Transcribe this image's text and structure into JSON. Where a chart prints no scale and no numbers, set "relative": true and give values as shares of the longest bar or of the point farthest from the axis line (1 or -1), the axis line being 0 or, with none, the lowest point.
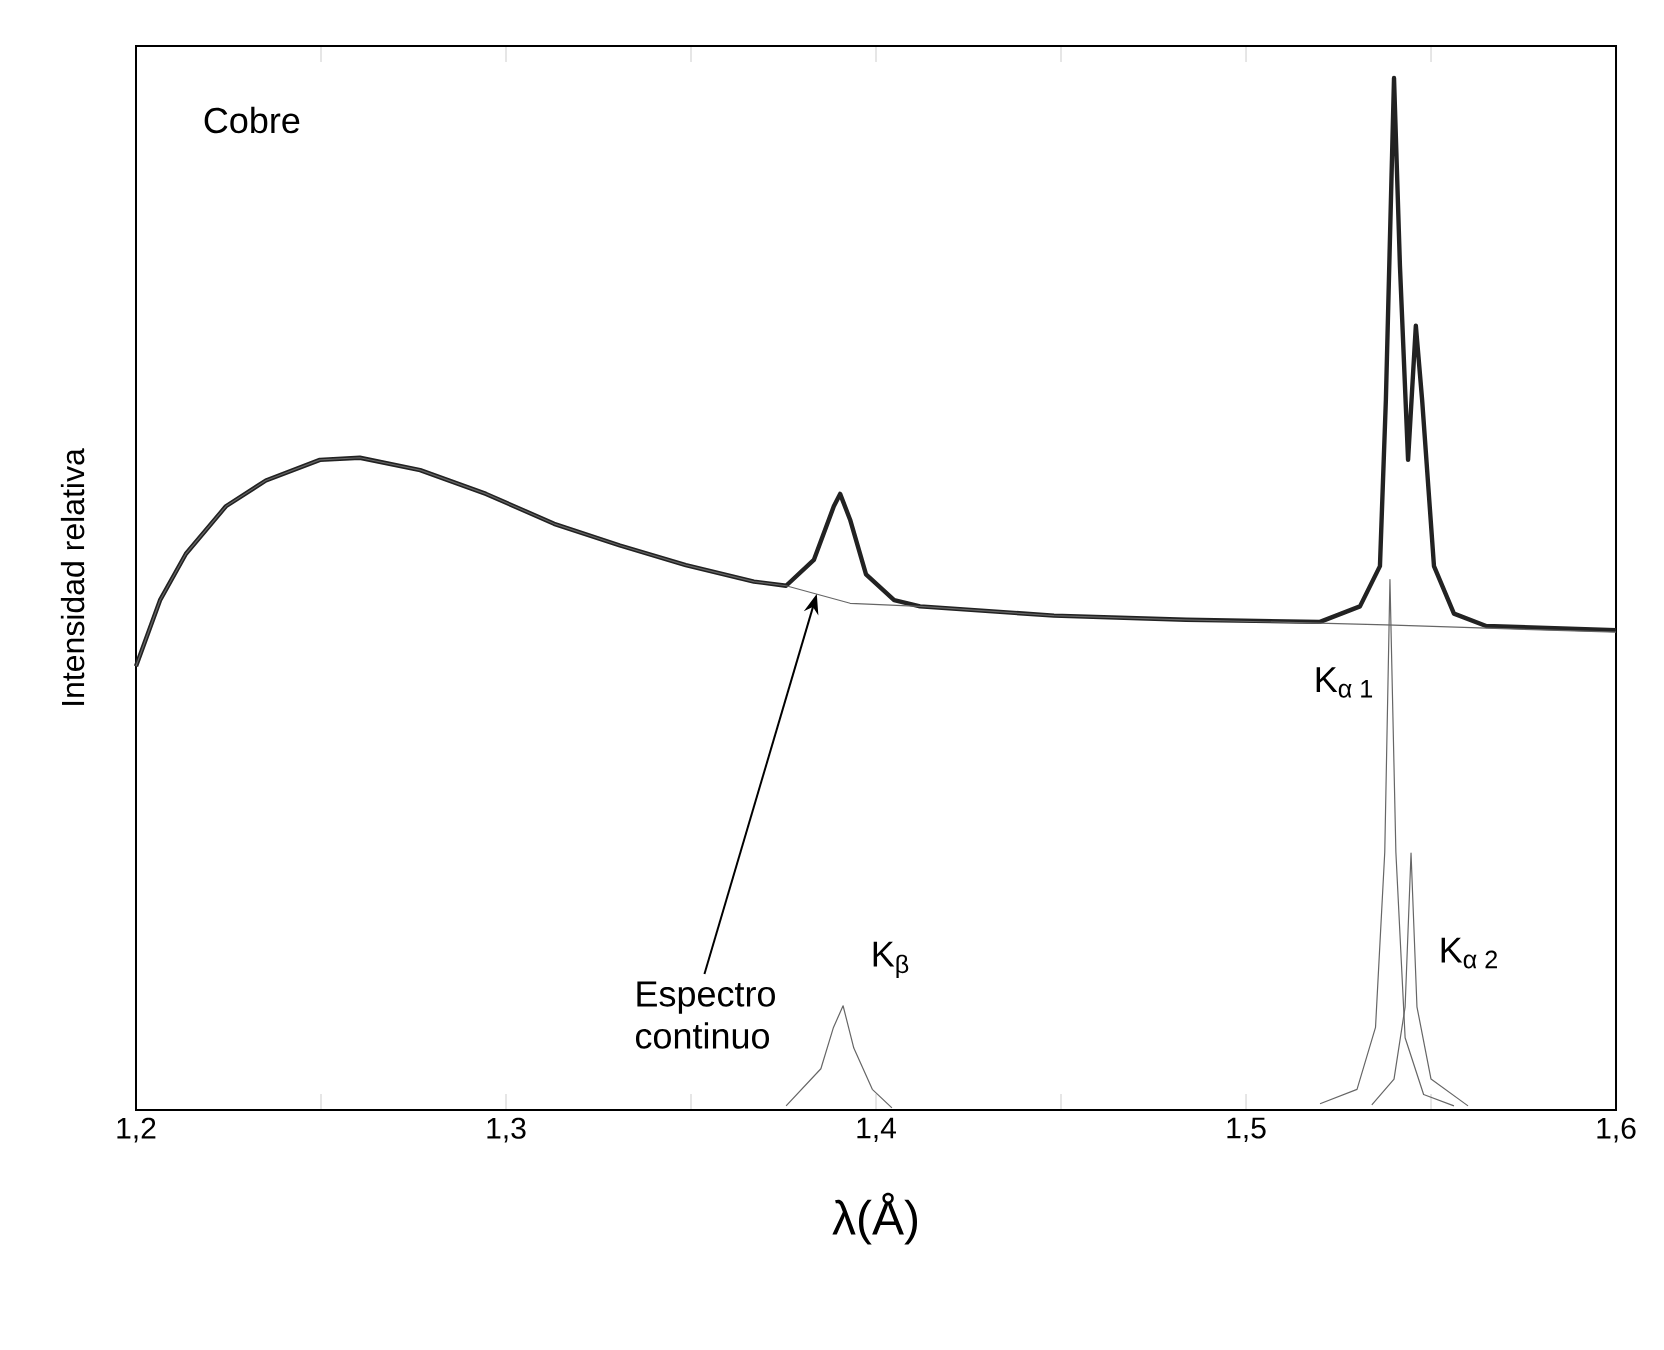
{
  "chart_data": {
    "type": "line",
    "relative": true,
    "xlabel": "λ(Å)",
    "ylabel": "Intensidad relativa",
    "grid": false,
    "marker": "none",
    "line_style": "solid",
    "xlim": [
      1.2,
      1.6
    ],
    "xticks": [
      {
        "value": 1.2,
        "label": "1,2"
      },
      {
        "value": 1.25,
        "label": null
      },
      {
        "value": 1.3,
        "label": "1,3"
      },
      {
        "value": 1.35,
        "label": null
      },
      {
        "value": 1.4,
        "label": "1,4"
      },
      {
        "value": 1.45,
        "label": null
      },
      {
        "value": 1.5,
        "label": "1,5"
      },
      {
        "value": 1.55,
        "label": null
      },
      {
        "value": 1.6,
        "label": "1,6"
      }
    ],
    "series": [
      {
        "color": "#222222",
        "x": [
          1.2,
          1.2065,
          1.2135,
          1.2243,
          1.2351,
          1.2497,
          1.2605,
          1.2768,
          1.2946,
          1.313,
          1.3308,
          1.3486,
          1.367,
          1.3757,
          1.3832,
          1.3886,
          1.3903,
          1.393,
          1.3973,
          1.4049,
          1.4119,
          1.4481,
          1.4838,
          1.52,
          1.5308,
          1.5362,
          1.5378,
          1.54,
          1.5416,
          1.5438,
          1.5459,
          1.5476,
          1.5508,
          1.5562,
          1.5649,
          1.6
        ],
        "values": [
          0.43,
          0.494,
          0.539,
          0.585,
          0.61,
          0.63,
          0.632,
          0.62,
          0.597,
          0.568,
          0.547,
          0.528,
          0.512,
          0.508,
          0.533,
          0.585,
          0.597,
          0.572,
          0.519,
          0.494,
          0.488,
          0.479,
          0.475,
          0.473,
          0.488,
          0.527,
          0.688,
          1.0,
          0.818,
          0.63,
          0.76,
          0.688,
          0.527,
          0.481,
          0.469,
          0.465
        ]
      },
      {
        "color": "#666666",
        "x": [
          1.2,
          1.2065,
          1.2135,
          1.2243,
          1.2351,
          1.2497,
          1.2605,
          1.2768,
          1.2946,
          1.313,
          1.3308,
          1.3486,
          1.367,
          1.3757,
          1.393,
          1.4119,
          1.4481,
          1.4838,
          1.5378,
          1.6
        ],
        "values": [
          0.43,
          0.494,
          0.539,
          0.585,
          0.61,
          0.63,
          0.632,
          0.62,
          0.597,
          0.568,
          0.547,
          0.528,
          0.512,
          0.508,
          0.491,
          0.488,
          0.479,
          0.475,
          0.47,
          0.463
        ]
      },
      {
        "color": "#666666",
        "x": [
          1.3757,
          1.3851,
          1.3885,
          1.3911,
          1.394,
          1.399,
          1.4043
        ],
        "values": [
          0.004,
          0.04,
          0.08,
          0.101,
          0.06,
          0.02,
          0.002
        ]
      },
      {
        "color": "#666666",
        "x": [
          1.52,
          1.53,
          1.535,
          1.5375,
          1.5389,
          1.5405,
          1.543,
          1.548,
          1.5562
        ],
        "values": [
          0.006,
          0.02,
          0.08,
          0.25,
          0.514,
          0.25,
          0.07,
          0.015,
          0.004
        ]
      },
      {
        "color": "#666666",
        "x": [
          1.534,
          1.54,
          1.543,
          1.5446,
          1.5462,
          1.55,
          1.56
        ],
        "values": [
          0.005,
          0.03,
          0.1,
          0.249,
          0.1,
          0.03,
          0.004
        ]
      }
    ],
    "annotations": [
      "Cobre",
      {
        "text": "Espectro continuo",
        "x": 1.384,
        "y": 0.5
      },
      {
        "text": "K$_{β}$",
        "x": 1.3911,
        "y": 0.101
      },
      {
        "text": "K$_{α 1}$",
        "x": 1.5389,
        "y": 0.514
      },
      {
        "text": "K$_{α 2}$",
        "x": 1.5446,
        "y": 0.249
      }
    ]
  }
}
